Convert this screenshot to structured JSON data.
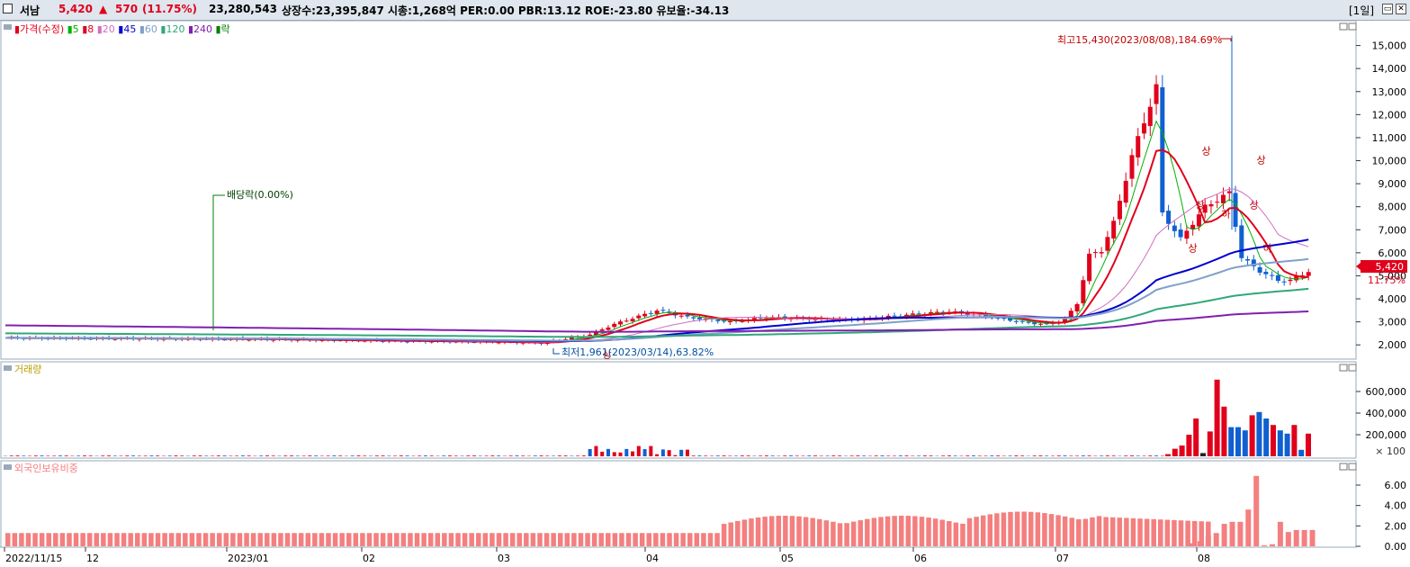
{
  "header": {
    "stock_name": "서남",
    "price": "5,420",
    "change_arrow": "▲",
    "change": "570",
    "change_pct": "(11.75%)",
    "volume": "23,280,543",
    "info": "상장수:23,395,847 시총:1,268억 PER:0.00 PBR:13.12 ROE:-23.80 유보율:-34.13",
    "period": "[1일]"
  },
  "price_panel": {
    "legend": [
      {
        "label": "가격(수정)",
        "color": "#e0001b"
      },
      {
        "label": "5",
        "color": "#00b000"
      },
      {
        "label": "8",
        "color": "#e0001b"
      },
      {
        "label": "20",
        "color": "#d070c0"
      },
      {
        "label": "45",
        "color": "#0000d0"
      },
      {
        "label": "60",
        "color": "#7fa0c8"
      },
      {
        "label": "120",
        "color": "#30a878"
      },
      {
        "label": "240",
        "color": "#8020b0"
      },
      {
        "label": "락",
        "color": "#008000"
      }
    ],
    "y_ticks": [
      "15,000",
      "14,000",
      "13,000",
      "12,000",
      "11,000",
      "10,000",
      "9,000",
      "8,000",
      "7,000",
      "6,000",
      "5,000",
      "4,000",
      "3,000",
      "2,000"
    ],
    "high_label": "최고15,430(2023/08/08),184.69%",
    "low_label": "최저1,961(2023/03/14),63.82%",
    "dividend_label": "배당락(0.00%)",
    "current_price_tag": "5,420",
    "current_pct_tag": "11.75%",
    "limit_up": "상",
    "limit_down": "하"
  },
  "volume_panel": {
    "legend": "거래량",
    "legend_color": "#b8a000",
    "y_ticks": [
      "600,000",
      "400,000",
      "200,000"
    ],
    "unit": "× 100"
  },
  "foreign_panel": {
    "legend": "외국인보유비중",
    "legend_color": "#f47f7f",
    "y_ticks": [
      "6.00",
      "4.00",
      "2.00",
      "0.00"
    ]
  },
  "x_axis": [
    "2022/11/15",
    "12",
    "2023/01",
    "02",
    "03",
    "04",
    "05",
    "06",
    "07",
    "08"
  ],
  "chart_data": {
    "type": "candlestick",
    "x": [
      "2022/11/15",
      "12",
      "2023/01",
      "02",
      "03",
      "04",
      "05",
      "06",
      "07",
      "08"
    ],
    "price_ylim": [
      1500,
      16000
    ],
    "high": {
      "value": 15430,
      "date": "2023/08/08",
      "pct": 184.69
    },
    "low": {
      "value": 1961,
      "date": "2023/03/14",
      "pct": 63.82
    },
    "last_close": 5420,
    "volume_unit": 100,
    "recent_volume_x100": [
      20000,
      70000,
      100000,
      200000,
      350000,
      30000,
      230000,
      710000,
      460000,
      270000,
      270000,
      240000,
      380000,
      410000,
      350000,
      290000,
      240000,
      210000,
      290000,
      60000,
      210000
    ],
    "foreign_ratio_pct": {
      "pre_april": 1.3,
      "april_to_july": [
        2.2,
        3.0
      ],
      "recent": [
        0.3,
        0.5,
        1.0,
        1.3,
        2.2,
        2.4,
        2.4,
        3.6,
        6.9,
        0.1,
        0.2,
        2.4,
        1.4,
        1.6,
        1.6,
        1.6
      ]
    }
  }
}
